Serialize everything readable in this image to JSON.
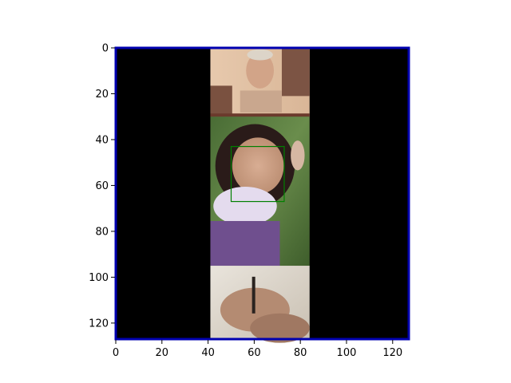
{
  "axes": {
    "x_ticks": [
      "0",
      "20",
      "40",
      "60",
      "80",
      "100",
      "120"
    ],
    "y_ticks": [
      "0",
      "20",
      "40",
      "60",
      "80",
      "100",
      "120"
    ],
    "x_range": [
      0,
      127
    ],
    "y_range": [
      0,
      127
    ],
    "y_inverted": true,
    "frame_color": "#0000b0"
  },
  "image": {
    "background_color": "#000000",
    "panels": [
      {
        "name": "man-photo",
        "x_range": [
          41,
          84
        ],
        "y_range": [
          0,
          30
        ],
        "color": "#b59c86"
      },
      {
        "name": "girl-photo",
        "x_range": [
          41,
          84
        ],
        "y_range": [
          30,
          95
        ],
        "color": "#5a7a42"
      },
      {
        "name": "hands-photo",
        "x_range": [
          41,
          84
        ],
        "y_range": [
          95,
          127
        ],
        "color": "#9a7f68"
      }
    ],
    "face_box": {
      "x_range": [
        50,
        73
      ],
      "y_range": [
        43,
        67
      ],
      "color": "#008000"
    }
  }
}
